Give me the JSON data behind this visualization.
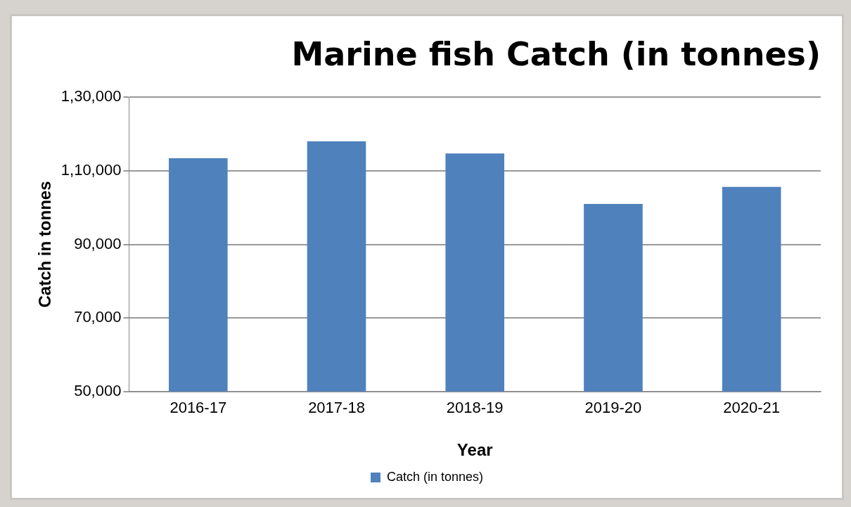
{
  "chart_data": {
    "type": "bar",
    "title": "Marine fish Catch (in tonnes)",
    "xlabel": "Year",
    "ylabel": "Catch in tonnes",
    "categories": [
      "2016-17",
      "2017-18",
      "2018-19",
      "2019-20",
      "2020-21"
    ],
    "series": [
      {
        "name": "Catch (in tonnes)",
        "color": "#4f81bd",
        "values": [
          113400,
          118000,
          114700,
          101000,
          105600
        ]
      }
    ],
    "ylim": [
      50000,
      130000
    ],
    "yticks": [
      {
        "value": 50000,
        "label": "50,000"
      },
      {
        "value": 70000,
        "label": "70,000"
      },
      {
        "value": 90000,
        "label": "90,000"
      },
      {
        "value": 110000,
        "label": "1,10,000"
      },
      {
        "value": 130000,
        "label": "1,30,000"
      }
    ],
    "grid": "y",
    "legend": "bottom"
  }
}
